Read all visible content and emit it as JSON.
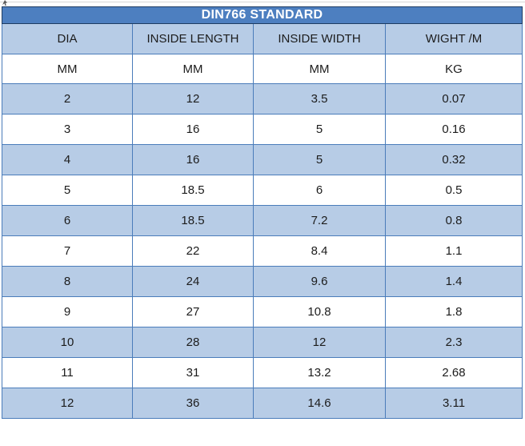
{
  "title": "DIN766 STANDARD",
  "table": {
    "columns": [
      "DIA",
      "INSIDE LENGTH",
      "INSIDE WIDTH",
      "WIGHT /M"
    ],
    "units": [
      "MM",
      "MM",
      "MM",
      "KG"
    ],
    "rows": [
      [
        "2",
        "12",
        "3.5",
        "0.07"
      ],
      [
        "3",
        "16",
        "5",
        "0.16"
      ],
      [
        "4",
        "16",
        "5",
        "0.32"
      ],
      [
        "5",
        "18.5",
        "6",
        "0.5"
      ],
      [
        "6",
        "18.5",
        "7.2",
        "0.8"
      ],
      [
        "7",
        "22",
        "8.4",
        "1.1"
      ],
      [
        "8",
        "24",
        "9.6",
        "1.4"
      ],
      [
        "9",
        "27",
        "10.8",
        "1.8"
      ],
      [
        "10",
        "28",
        "12",
        "2.3"
      ],
      [
        "11",
        "31",
        "13.2",
        "2.68"
      ],
      [
        "12",
        "36",
        "14.6",
        "3.11"
      ]
    ]
  },
  "colors": {
    "accent": "#4d7fc0",
    "row_alt": "#b7cce6",
    "border": "#4a7cba",
    "title_border": "#1e3c62",
    "hairline": "#d6d6d6",
    "text": "#1c1c1c",
    "title_text": "#ffffff",
    "bg": "#ffffff"
  }
}
